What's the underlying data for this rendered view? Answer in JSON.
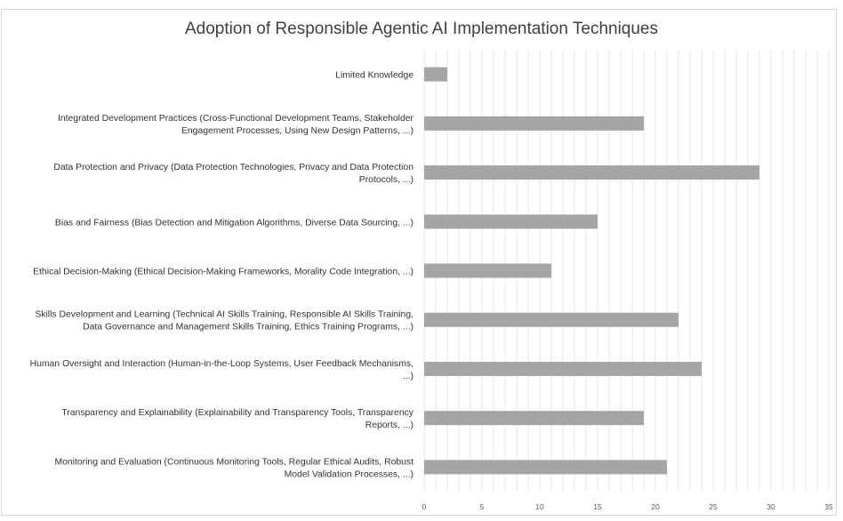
{
  "chart_data": {
    "type": "bar",
    "orientation": "horizontal",
    "title": "Adoption of Responsible Agentic AI Implementation Techniques",
    "xlabel": "",
    "ylabel": "",
    "categories": [
      [
        "Limited Knowledge"
      ],
      [
        "Integrated Development Practices (Cross-Functional Development Teams, Stakeholder",
        "Engagement Processes, Using New Design Patterns, ...)"
      ],
      [
        "Data Protection and Privacy (Data Protection Technologies, Privacy and Data Protection",
        "Protocols, ...)"
      ],
      [
        "Bias and Fairness (Bias Detection and Mitigation Algorithms, Diverse Data Sourcing, ...)"
      ],
      [
        "Ethical Decision-Making (Ethical Decision-Making Frameworks, Morality Code Integration, ...)"
      ],
      [
        "Skills Development and Learning (Technical AI Skills Training, Responsible AI Skills Training,",
        "Data Governance and Management Skills Training, Ethics Training Programs, ...)"
      ],
      [
        "Human Oversight and Interaction (Human-in-the-Loop Systems, User Feedback Mechanisms,",
        "...)"
      ],
      [
        "Transparency and Explainability (Explainability and Transparency Tools, Transparency",
        "Reports, ...)"
      ],
      [
        "Monitoring and Evaluation (Continuous Monitoring Tools, Regular Ethical Audits, Robust",
        "Model Validation Processes, ...)"
      ]
    ],
    "values": [
      2,
      19,
      29,
      15,
      11,
      22,
      24,
      19,
      21
    ],
    "xlim": [
      0,
      35
    ],
    "xticks": [
      0,
      5,
      10,
      15,
      20,
      25,
      30,
      35
    ],
    "minor_grid_step": 1,
    "grid": true,
    "legend": "none",
    "bar_color": "#a5a5a5",
    "grid_color": "#e6e6e6"
  }
}
